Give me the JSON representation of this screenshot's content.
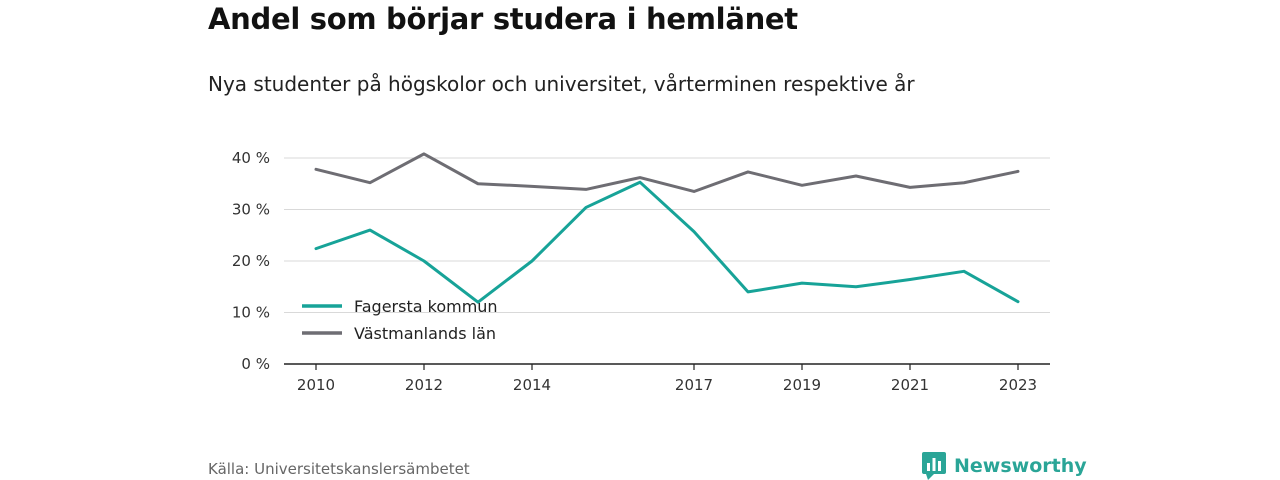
{
  "title": "Andel som börjar studera i hemlänet",
  "subtitle": "Nya studenter på högskolor och universitet, vårterminen respektive år",
  "source": "Källa: Universitetskanslersämbetet",
  "brand": {
    "name": "Newsworthy",
    "icon": "bar-chart-speech-icon",
    "color": "#2aa597"
  },
  "chart_data": {
    "type": "line",
    "x": [
      2010,
      2011,
      2012,
      2013,
      2014,
      2015,
      2016,
      2017,
      2018,
      2019,
      2020,
      2021,
      2022,
      2023
    ],
    "x_ticks": [
      2010,
      2012,
      2014,
      2017,
      2019,
      2021,
      2023
    ],
    "y_ticks": [
      0,
      10,
      20,
      30,
      40
    ],
    "y_tick_labels": [
      "0 %",
      "10 %",
      "20 %",
      "30 %",
      "40 %"
    ],
    "ylim": [
      0,
      40
    ],
    "xlim": [
      2010,
      2023
    ],
    "grid": true,
    "legend_placement": "bottom-left",
    "series": [
      {
        "name": "Fagersta kommun",
        "color": "#17a398",
        "values": [
          22.4,
          26.0,
          20.0,
          12.0,
          20.0,
          30.4,
          35.3,
          25.7,
          14.0,
          15.7,
          15.0,
          16.4,
          18.0,
          12.1
        ]
      },
      {
        "name": "Västmanlands län",
        "color": "#6e6d73",
        "values": [
          37.8,
          35.2,
          40.8,
          35.0,
          34.5,
          33.9,
          36.2,
          33.5,
          37.3,
          34.7,
          36.5,
          34.3,
          35.2,
          37.4
        ]
      }
    ]
  }
}
